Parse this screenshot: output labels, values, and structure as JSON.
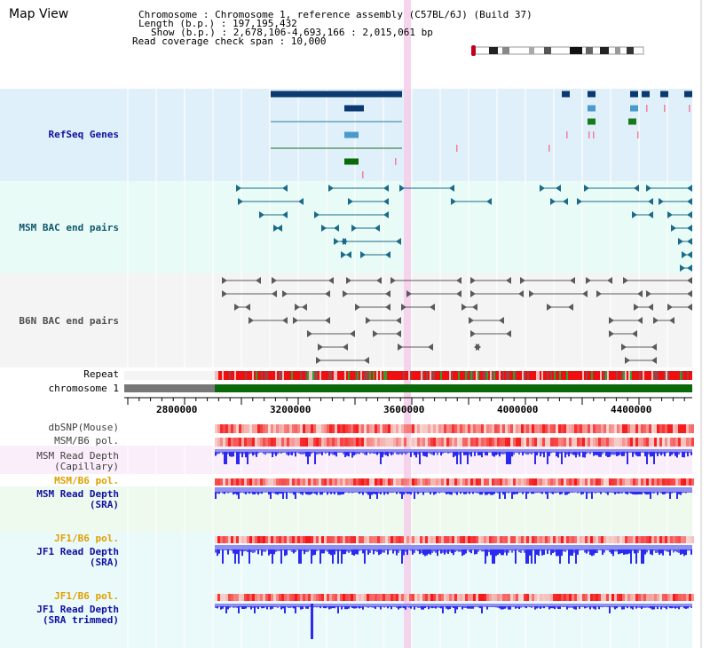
{
  "title": "Map View",
  "header": {
    "chromosome": "Chromosome       : Chromosome 1, reference assembly (C57BL/6J) (Build 37)",
    "length": "Length (b.p.) : 197,195,432",
    "show": "Show (b.p.) : 2,678,106-4,693,166 : 2,015,061 bp",
    "coverage": "Read coverage check span : 10,000"
  },
  "tracks": {
    "refseq": "RefSeq Genes",
    "msm_bac": "MSM BAC end pairs",
    "b6n_bac": "B6N BAC end pairs",
    "repeat": "Repeat",
    "chromosome": "chromosome 1",
    "dbsnp": "dbSNP(Mouse)",
    "msm_b6_pol_1": "MSM/B6 pol.",
    "msm_depth_cap_1": "MSM Read Depth",
    "msm_depth_cap_2": "(Capillary)",
    "msm_b6_pol_2": "MSM/B6 pol.",
    "msm_depth_sra_1": "MSM Read Depth",
    "msm_depth_sra_2": "(SRA)",
    "jf1_b6_pol_1": "JF1/B6 pol.",
    "jf1_depth_1": "JF1 Read Depth",
    "jf1_depth_2": "(SRA)",
    "jf1_b6_pol_2": "JF1/B6 pol.",
    "jf1_trim_1": "JF1 Read Depth",
    "jf1_trim_2": "(SRA trimmed)"
  },
  "axis_ticks": [
    "2800000",
    "3200000",
    "3600000",
    "4000000",
    "4400000"
  ],
  "colors": {
    "refseq_bg": "#e0f0fa",
    "msm_bac_bg": "#e8fbf6",
    "b6n_bac_bg": "#f4f4f4",
    "msm_cap_bg": "#faeefa",
    "msm_sra_bg": "#eefaee",
    "jf1_bg": "#eafafa",
    "highlight": "#f5cdea",
    "label_blue": "#1010a0",
    "label_teal": "#105870",
    "label_gray": "#505050",
    "label_orange": "#e0a000",
    "gene_dark": "#0a3a70",
    "chromosome_green": "#0a6a0a",
    "depth_blue": "#2a2af0"
  }
}
